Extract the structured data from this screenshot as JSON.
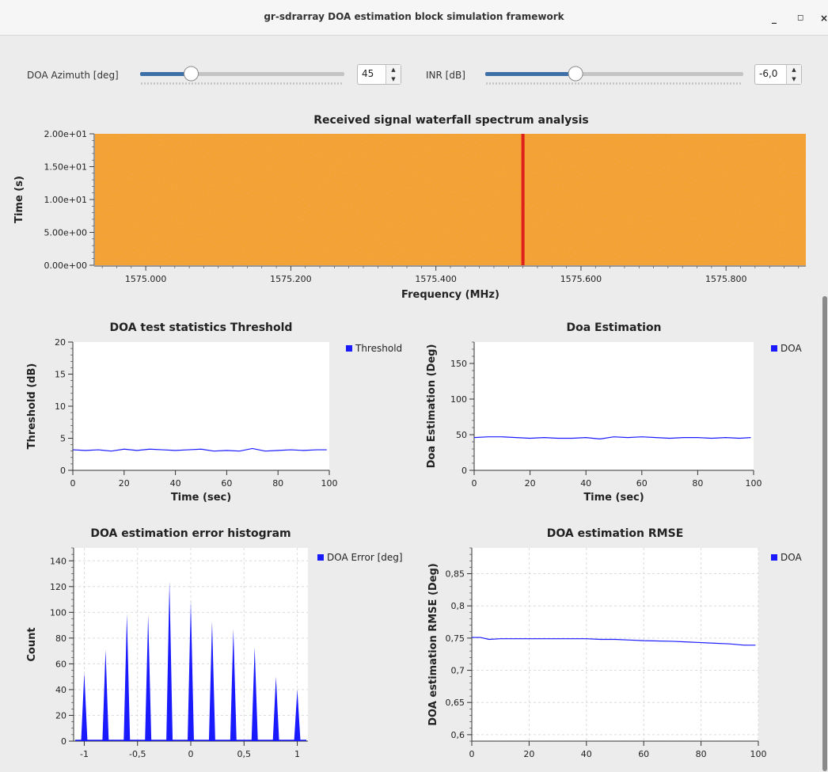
{
  "window": {
    "title": "gr-sdrarray DOA estimation block simulation framework",
    "minimize": "_",
    "maximize": "◻",
    "close": "×"
  },
  "controls": {
    "doa_label": "DOA Azimuth [deg]",
    "doa_value": "45",
    "doa_slider_fraction": 0.25,
    "inr_label": "INR [dB]",
    "inr_value": "-6,0",
    "inr_slider_fraction": 0.35,
    "spin_up": "▲",
    "spin_down": "▼"
  },
  "colors": {
    "series": "#1a1aff",
    "waterfall_bg": "#f2a32a",
    "waterfall_signal": "#e0201a",
    "slider_fill": "#3d6fa8"
  },
  "waterfall": {
    "title": "Received signal waterfall spectrum analysis",
    "xlabel": "Frequency (MHz)",
    "ylabel": "Time (s)",
    "xticks": [
      "1575.000",
      "1575.200",
      "1575.400",
      "1575.600",
      "1575.800"
    ],
    "yticks": [
      "0.00e+00",
      "5.00e+00",
      "1.00e+01",
      "1.50e+01",
      "2.00e+01"
    ]
  },
  "chart_data": [
    {
      "type": "heatmap",
      "title": "Received signal waterfall spectrum analysis",
      "xlabel": "Frequency (MHz)",
      "ylabel": "Time (s)",
      "xlim": [
        1574.93,
        1575.91
      ],
      "ylim": [
        0,
        20
      ],
      "signal_frequency_mhz": 1575.52
    },
    {
      "type": "line",
      "title": "DOA test statistics Threshold",
      "xlabel": "Time (sec)",
      "ylabel": "Threshold (dB)",
      "xlim": [
        0,
        100
      ],
      "ylim": [
        0,
        20
      ],
      "xticks": [
        "0",
        "20",
        "40",
        "60",
        "80",
        "100"
      ],
      "yticks": [
        "0",
        "5",
        "10",
        "15",
        "20"
      ],
      "grid": false,
      "legend": "right",
      "series": [
        {
          "name": "Threshold",
          "x": [
            0,
            5,
            10,
            15,
            20,
            25,
            30,
            35,
            40,
            45,
            50,
            55,
            60,
            65,
            70,
            75,
            80,
            85,
            90,
            95,
            99
          ],
          "values": [
            3.2,
            3.1,
            3.2,
            3.0,
            3.3,
            3.1,
            3.3,
            3.2,
            3.1,
            3.2,
            3.3,
            3.0,
            3.1,
            3.0,
            3.4,
            3.0,
            3.1,
            3.2,
            3.1,
            3.2,
            3.2
          ]
        }
      ]
    },
    {
      "type": "line",
      "title": "Doa Estimation",
      "xlabel": "Time (sec)",
      "ylabel": "Doa Estimation (Deg)",
      "xlim": [
        0,
        100
      ],
      "ylim": [
        0,
        180
      ],
      "xticks": [
        "0",
        "20",
        "40",
        "60",
        "80",
        "100"
      ],
      "yticks": [
        "0",
        "50",
        "100",
        "150"
      ],
      "grid": false,
      "legend": "right",
      "series": [
        {
          "name": "DOA",
          "x": [
            0,
            5,
            10,
            15,
            20,
            25,
            30,
            35,
            40,
            45,
            50,
            55,
            60,
            65,
            70,
            75,
            80,
            85,
            90,
            95,
            99
          ],
          "values": [
            46,
            47,
            47,
            46,
            45,
            46,
            45,
            45,
            46,
            44,
            47,
            46,
            47,
            46,
            45,
            46,
            46,
            45,
            46,
            45,
            46
          ]
        }
      ]
    },
    {
      "type": "area",
      "title": "DOA estimation error histogram",
      "xlabel": "",
      "ylabel": "Count",
      "xlim": [
        -1.1,
        1.1
      ],
      "ylim": [
        0,
        150
      ],
      "xticks": [
        "-1",
        "-0,5",
        "0",
        "0,5",
        "1"
      ],
      "yticks": [
        "0",
        "20",
        "40",
        "60",
        "80",
        "100",
        "120",
        "140"
      ],
      "grid": true,
      "legend": "right",
      "series": [
        {
          "name": "DOA Error [deg]",
          "x": [
            -1.0,
            -0.8,
            -0.6,
            -0.4,
            -0.2,
            0.0,
            0.2,
            0.4,
            0.6,
            0.8,
            1.0
          ],
          "values": [
            53,
            71,
            99,
            98,
            124,
            109,
            93,
            87,
            73,
            50,
            40
          ]
        }
      ]
    },
    {
      "type": "line",
      "title": "DOA estimation RMSE",
      "xlabel": "",
      "ylabel": "DOA estimation RMSE (Deg)",
      "xlim": [
        0,
        100
      ],
      "ylim": [
        0.59,
        0.89
      ],
      "xticks": [
        "0",
        "20",
        "40",
        "60",
        "80",
        "100"
      ],
      "yticks": [
        "0,6",
        "0,65",
        "0,7",
        "0,75",
        "0,8",
        "0,85"
      ],
      "grid": true,
      "legend": "right",
      "series": [
        {
          "name": "DOA",
          "x": [
            0,
            3,
            6,
            10,
            20,
            30,
            40,
            45,
            50,
            55,
            60,
            70,
            75,
            80,
            90,
            95,
            99
          ],
          "values": [
            0.751,
            0.751,
            0.748,
            0.749,
            0.749,
            0.749,
            0.749,
            0.748,
            0.748,
            0.747,
            0.746,
            0.745,
            0.744,
            0.743,
            0.741,
            0.739,
            0.739
          ]
        }
      ]
    }
  ]
}
